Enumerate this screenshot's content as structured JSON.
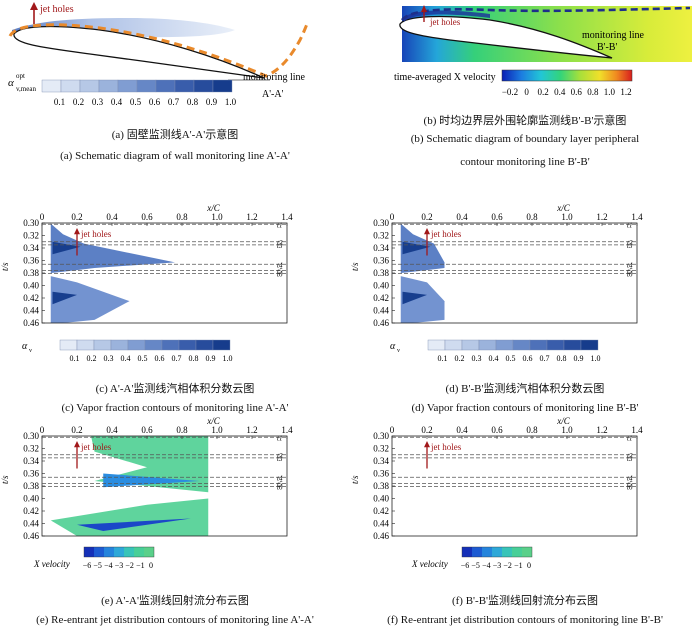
{
  "panel_a": {
    "label_jet": "jet holes",
    "label_monitor_1": "monitoring line",
    "label_monitor_2": "A'-A'",
    "cbar_label": "α",
    "cbar_sup": "opt",
    "cbar_sub": "v,mean",
    "cbar_ticks": [
      "0.1",
      "0.2",
      "0.3",
      "0.4",
      "0.5",
      "0.6",
      "0.7",
      "0.8",
      "0.9",
      "1.0"
    ],
    "caption_cn": "(a) 固壁监测线A'-A'示意图",
    "caption_en": "(a) Schematic diagram of wall monitoring line A'-A'"
  },
  "panel_b": {
    "label_jet": "jet holes",
    "label_monitor_1": "monitoring line",
    "label_monitor_2": "B'-B'",
    "cbar_label": "time-averaged X velocity",
    "cbar_ticks": [
      "−0.2",
      "0",
      "0.2",
      "0.4",
      "0.6",
      "0.8",
      "1.0",
      "1.2"
    ],
    "caption_cn": "(b) 时均边界层外围轮廓监测线B'-B'示意图",
    "caption_en_1": "(b) Schematic diagram of boundary layer peripheral",
    "caption_en_2": "contour monitoring line B'-B'"
  },
  "contour_common": {
    "x_axis_title": "x/C",
    "x_ticks": [
      "0",
      "0.2",
      "0.4",
      "0.6",
      "0.8",
      "1.0",
      "1.2",
      "1.4"
    ],
    "y_axis_title": "t/s",
    "y_ticks": [
      "0.30",
      "0.32",
      "0.34",
      "0.36",
      "0.38",
      "0.40",
      "0.42",
      "0.44",
      "0.46"
    ],
    "t_labels": [
      "t1",
      "t2",
      "t3",
      "t4",
      "t5",
      "t6"
    ],
    "jet_label": "jet holes"
  },
  "panel_c": {
    "cbar_label": "α",
    "cbar_sub": "v",
    "cbar_ticks": [
      "0.1",
      "0.2",
      "0.3",
      "0.4",
      "0.5",
      "0.6",
      "0.7",
      "0.8",
      "0.9",
      "1.0"
    ],
    "caption_cn": "(c) A'-A'监测线汽相体积分数云图",
    "caption_en": "(c) Vapor fraction contours of monitoring line A'-A'"
  },
  "panel_d": {
    "cbar_label": "α",
    "cbar_sub": "v",
    "cbar_ticks": [
      "0.1",
      "0.2",
      "0.3",
      "0.4",
      "0.5",
      "0.6",
      "0.7",
      "0.8",
      "0.9",
      "1.0"
    ],
    "caption_cn": "(d) B'-B'监测线汽相体积分数云图",
    "caption_en": "(d) Vapor fraction contours of monitoring line B'-B'"
  },
  "panel_e": {
    "cbar_label": "X velocity",
    "cbar_ticks": [
      "−6",
      "−5",
      "−4",
      "−3",
      "−2",
      "−1",
      "0"
    ],
    "caption_cn": "(e) A'-A'监测线回射流分布云图",
    "caption_en": "(e) Re-entrant jet distribution contours of monitoring line A'-A'"
  },
  "panel_f": {
    "cbar_label": "X velocity",
    "cbar_ticks": [
      "−6",
      "−5",
      "−4",
      "−3",
      "−2",
      "−1",
      "0"
    ],
    "caption_cn": "(f) B'-B'监测线回射流分布云图",
    "caption_en": "(f) Re-entrant jet distribution contours of monitoring line B'-B'"
  },
  "colors": {
    "blue_dark": "#1a3f93",
    "blue_mid": "#4f78c4",
    "blue_light": "#c7d6ef",
    "orange_dash": "#e98a2c",
    "navy_dash": "#1d2f8a",
    "jet_arrow": "#a1181a",
    "green_jet": "#5ad08a"
  }
}
